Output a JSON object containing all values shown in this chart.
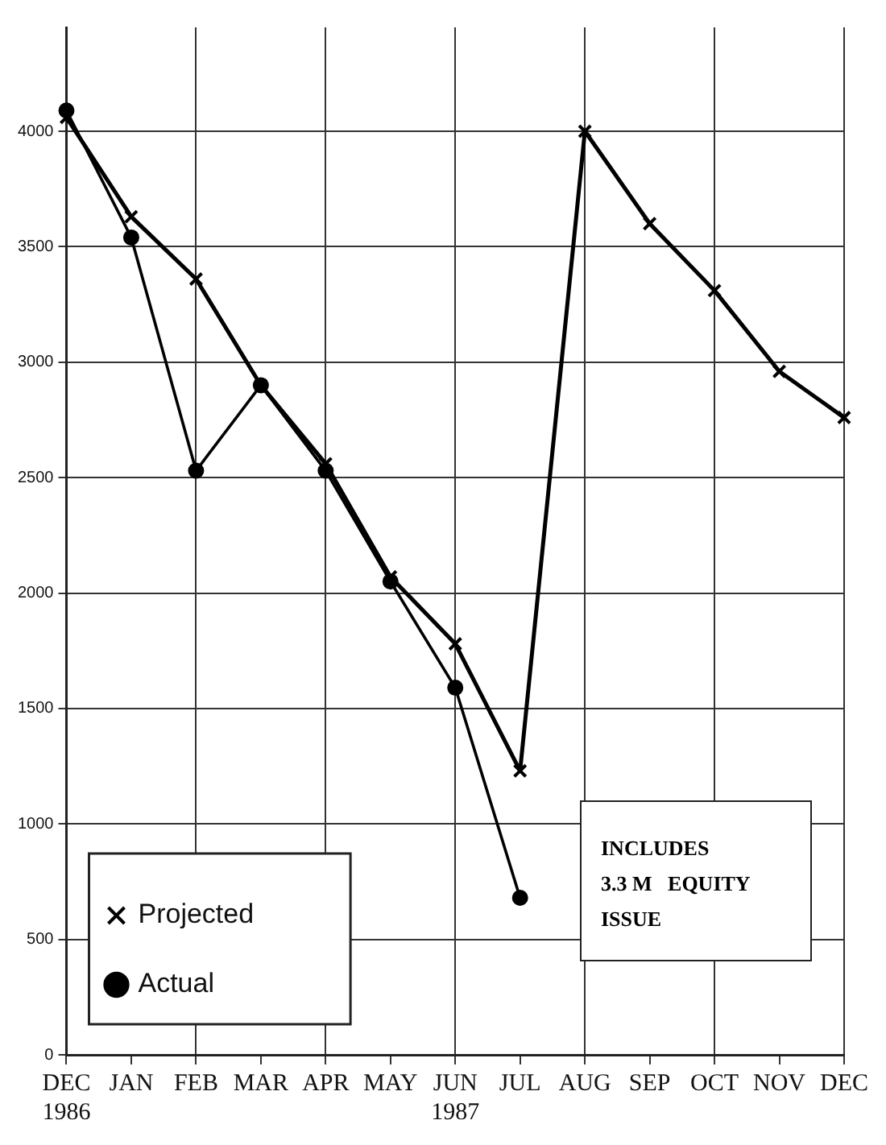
{
  "chart_data": {
    "type": "line",
    "categories": [
      "DEC\n1986",
      "JAN",
      "FEB",
      "MAR",
      "APR",
      "MAY",
      "JUN\n1987",
      "JUL",
      "AUG",
      "SEP",
      "OCT",
      "NOV",
      "DEC"
    ],
    "series": [
      {
        "name": "Projected",
        "color": "#000000",
        "marker": "cross",
        "values": [
          4060,
          3630,
          3360,
          2900,
          2560,
          2070,
          1780,
          1230,
          4000,
          3600,
          3310,
          2960,
          2760
        ]
      },
      {
        "name": "Actual",
        "color": "#000000",
        "marker": "circle",
        "values": [
          4090,
          3540,
          2530,
          2900,
          2530,
          2050,
          1590,
          680,
          null,
          null,
          null,
          null,
          null
        ]
      }
    ],
    "ylim": [
      0,
      4450
    ],
    "yticks": [
      0,
      500,
      1000,
      1500,
      2000,
      2500,
      3000,
      3500,
      4000
    ],
    "grid": true,
    "legend": "bottom left",
    "line_style": "solid",
    "annotations": [
      "INCLUDES\n3.3 M   EQUITY\nISSUE"
    ]
  }
}
